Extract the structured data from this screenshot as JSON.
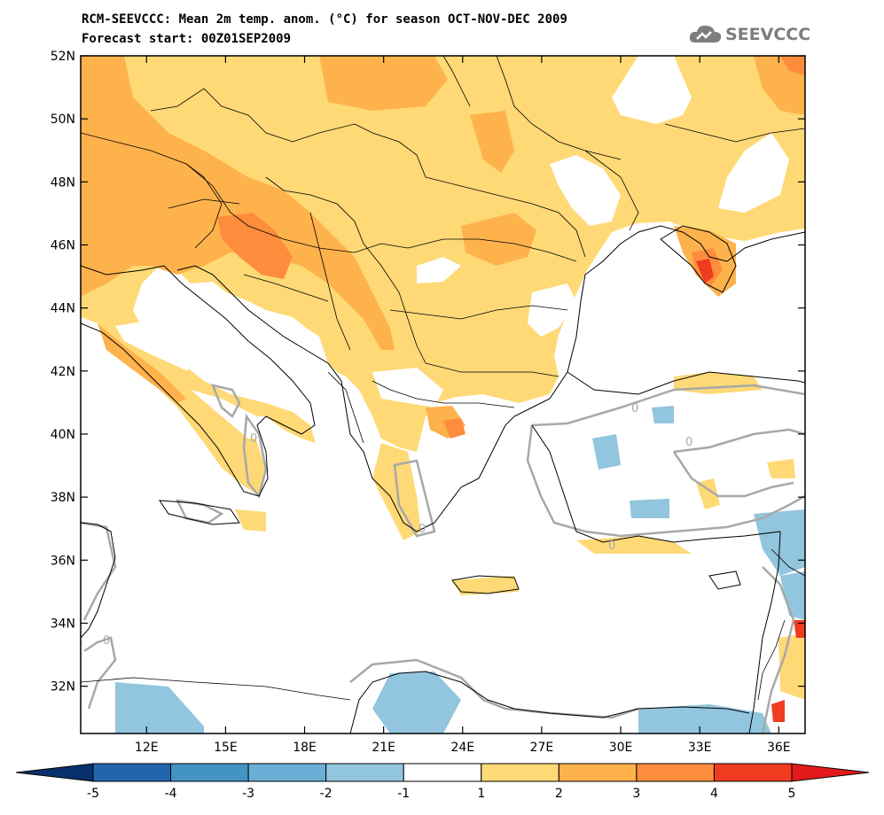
{
  "header": {
    "title_line1": "RCM-SEEVCCC: Mean 2m temp. anom. (°C) for season OCT-NOV-DEC 2009",
    "title_line2": "Forecast start: 00Z01SEP2009"
  },
  "logo": {
    "text": "SEEVCCC",
    "icon": "cloud-logo-icon",
    "color": "#7d7d7d"
  },
  "map": {
    "lon_range": [
      9.5,
      37.0
    ],
    "lat_range": [
      30.5,
      52.0
    ],
    "lat_ticks": [
      {
        "value": 52,
        "label": "52N"
      },
      {
        "value": 50,
        "label": "50N"
      },
      {
        "value": 48,
        "label": "48N"
      },
      {
        "value": 46,
        "label": "46N"
      },
      {
        "value": 44,
        "label": "44N"
      },
      {
        "value": 42,
        "label": "42N"
      },
      {
        "value": 40,
        "label": "40N"
      },
      {
        "value": 38,
        "label": "38N"
      },
      {
        "value": 36,
        "label": "36N"
      },
      {
        "value": 34,
        "label": "34N"
      },
      {
        "value": 32,
        "label": "32N"
      }
    ],
    "lon_ticks": [
      {
        "value": 12,
        "label": "12E"
      },
      {
        "value": 15,
        "label": "15E"
      },
      {
        "value": 18,
        "label": "18E"
      },
      {
        "value": 21,
        "label": "21E"
      },
      {
        "value": 24,
        "label": "24E"
      },
      {
        "value": 27,
        "label": "27E"
      },
      {
        "value": 30,
        "label": "30E"
      },
      {
        "value": 33,
        "label": "33E"
      },
      {
        "value": 36,
        "label": "36E"
      }
    ],
    "zero_contour_label": "0"
  },
  "colorbar": {
    "levels": [
      "-5",
      "-4",
      "-3",
      "-2",
      "-1",
      "1",
      "2",
      "3",
      "4",
      "5"
    ],
    "colors": [
      "#2166ac",
      "#4393c3",
      "#6baed6",
      "#92c5de",
      "#ffffff",
      "#fed976",
      "#feb24c",
      "#fd8d3c",
      "#f03b20"
    ],
    "under_color": "#08306b",
    "over_color": "#e31a1c"
  },
  "palette": {
    "anom_1_2": "#fed976",
    "anom_2_3": "#feb24c",
    "anom_3_4": "#fd8d3c",
    "anom_4_5": "#f03b20",
    "anom_m1_m2": "#92c5de",
    "contour_zero": "#a8a8a8",
    "coast": "#000000"
  }
}
